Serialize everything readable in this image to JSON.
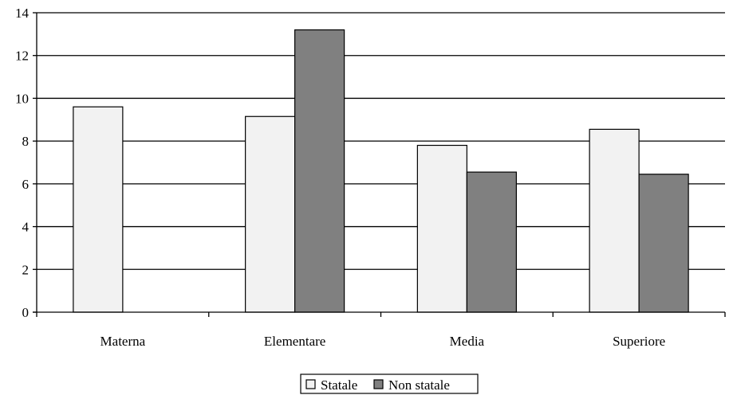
{
  "chart_data": {
    "type": "bar",
    "categories": [
      "Materna",
      "Elementare",
      "Media",
      "Superiore"
    ],
    "series": [
      {
        "name": "Statale",
        "color": "#f2f2f2",
        "values": [
          9.6,
          9.15,
          7.8,
          8.55
        ]
      },
      {
        "name": "Non statale",
        "color": "#808080",
        "values": [
          null,
          13.2,
          6.55,
          6.45
        ]
      }
    ],
    "ylim": [
      0,
      14
    ],
    "yticks": [
      0,
      2,
      4,
      6,
      8,
      10,
      12,
      14
    ],
    "grid": true,
    "legend_position": "bottom-center",
    "title": "",
    "xlabel": "",
    "ylabel": ""
  }
}
